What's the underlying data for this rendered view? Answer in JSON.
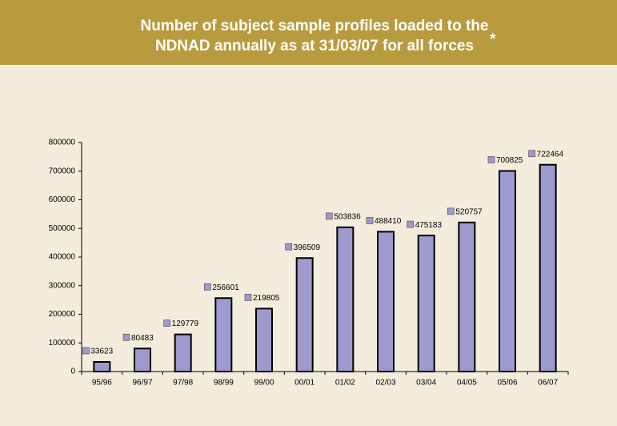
{
  "chart_data": {
    "type": "bar",
    "title": [
      "Number of subject sample profiles loaded to the",
      "NDNAD annually as at 31/03/07 for all forces"
    ],
    "title_mark": "*",
    "categories": [
      "95/96",
      "96/97",
      "97/98",
      "98/99",
      "99/00",
      "00/01",
      "01/02",
      "02/03",
      "03/04",
      "04/05",
      "05/06",
      "06/07"
    ],
    "values": [
      33623,
      80483,
      129779,
      256601,
      219805,
      396509,
      503836,
      488410,
      475183,
      520757,
      700825,
      722464
    ],
    "color": "#9d9ad0",
    "ylim": [
      0,
      800000
    ],
    "yticks": [
      0,
      100000,
      200000,
      300000,
      400000,
      500000,
      600000,
      700000,
      800000
    ],
    "grid": false
  }
}
